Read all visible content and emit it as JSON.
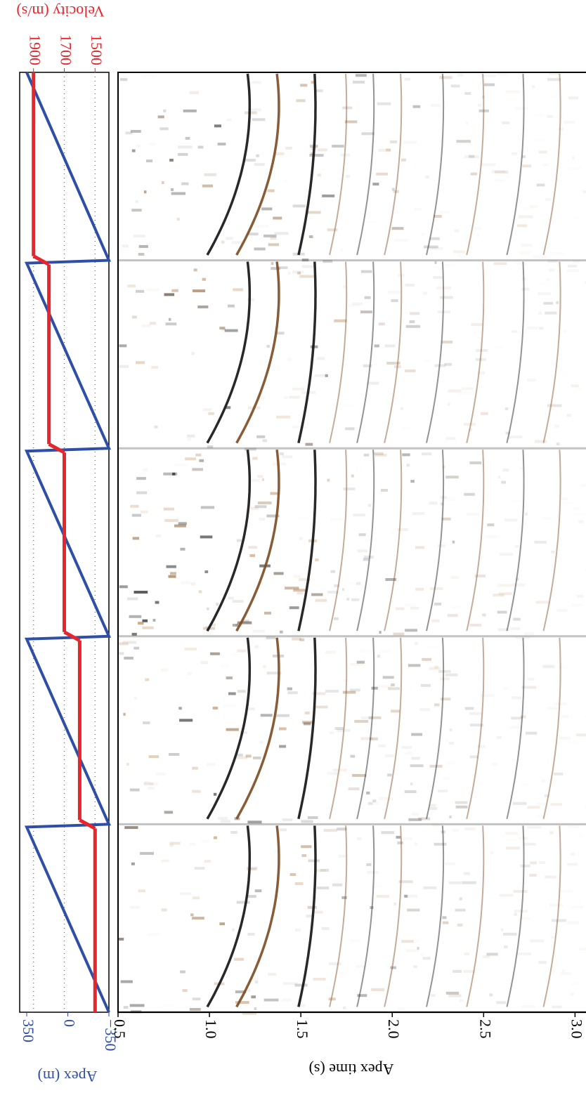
{
  "chart_data": [
    {
      "type": "line",
      "x_label": "Apex (m)",
      "y2_label": "Velocity (m/s)",
      "ylim": [
        -350,
        410
      ],
      "yticks": [
        {
          "value": -350,
          "label": "−350"
        },
        0,
        350
      ],
      "y2lim": [
        1410,
        1990
      ],
      "y2ticks": [
        1500,
        1700,
        1900
      ],
      "grid": true,
      "series": [
        {
          "color": "#2f4fa6",
          "values": [
            350,
            -350,
            350,
            -350,
            350,
            -350,
            350,
            -350,
            350,
            -350
          ]
        },
        {
          "color": "#e8252b",
          "axis": "y2",
          "values": [
            1900,
            1800,
            1700,
            1600,
            1500
          ]
        }
      ]
    },
    {
      "type": "image",
      "x_label": "Apex time (s)",
      "xlim": [
        0.5,
        3.06
      ],
      "xticks": [
        0.5,
        {
          "value": 1,
          "label": "1.0"
        },
        1.5,
        {
          "value": 2,
          "label": "2.0"
        },
        2.5,
        {
          "value": 3,
          "label": "3.0"
        }
      ]
    }
  ]
}
